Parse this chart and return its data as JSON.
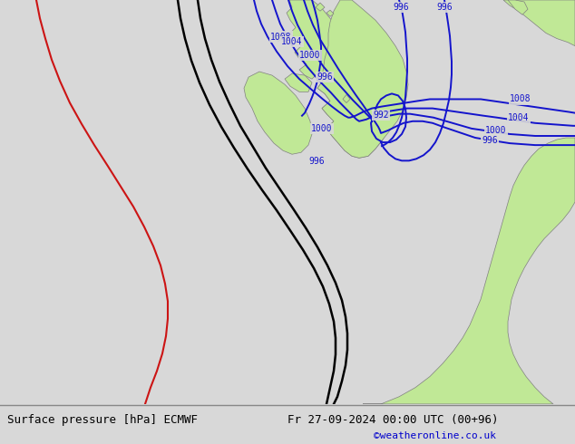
{
  "title_left": "Surface pressure [hPa] ECMWF",
  "title_right": "Fr 27-09-2024 00:00 UTC (00+96)",
  "copyright": "©weatheronline.co.uk",
  "bg_color": "#d8d8d8",
  "land_color": "#c0e896",
  "isobar_blue": "#1414cc",
  "isobar_black": "#000000",
  "isobar_red": "#cc1414",
  "title_fontsize": 9,
  "label_fontsize": 7,
  "isobar_lw": 1.4
}
